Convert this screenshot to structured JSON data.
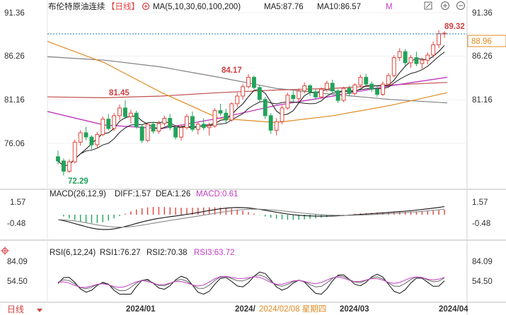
{
  "header": {
    "title": "布伦特原油连续",
    "period_badge": "【日线】",
    "ma_params": "MA(5,10,30,60,100,200)",
    "ma5": "MA5:87.76",
    "ma10": "MA10:86.57",
    "ma_more": "M"
  },
  "price_axis": {
    "ticks": [
      "91.36",
      "86.26",
      "81.16",
      "76.06"
    ],
    "current_price": "88.96"
  },
  "annotations": {
    "high_1": "89.32",
    "high_2": "84.17",
    "level_mid": "81.45",
    "low": "72.29"
  },
  "macd_legend": {
    "params": "MACD(26,12,9)",
    "diff": "DIFF:1.57",
    "dea": "DEA:1.26",
    "macd": "MACD:0.61"
  },
  "macd_axis": {
    "ticks": [
      "1.57",
      "-0.48"
    ]
  },
  "rsi_legend": {
    "params": "RSI(6,12,24)",
    "rsi1": "RSI1:76.27",
    "rsi2": "RSI2:70.38",
    "rsi3": "RSI3:63.72"
  },
  "rsi_axis": {
    "ticks": [
      "84.09",
      "54.50"
    ]
  },
  "footer": {
    "period_button": "日线",
    "dates": [
      "2024/01",
      "2024/02/08 星期四",
      "2024/03",
      "2024/04"
    ],
    "date_first_part": "2024/",
    "date_highlight": "2024/02/08 星期四"
  },
  "colors": {
    "up": "#e0443a",
    "down": "#22a35a",
    "ma5": "#111111",
    "ma10": "#222222",
    "ma30": "#c03cc0",
    "ma60": "#e08a20",
    "ma100": "#c0504d",
    "ma200": "#808080",
    "diff": "#111111",
    "dea": "#888888"
  },
  "chart_data": {
    "type": "candlestick",
    "title": "布伦特原油连续",
    "period": "daily",
    "yticks": [
      91.36,
      86.26,
      81.16,
      76.06
    ],
    "ylim": [
      71.5,
      92.5
    ],
    "current_price": 88.96,
    "high_marker": 89.32,
    "low_marker": 72.29,
    "x_labels": [
      "2024/01",
      "2024/02/08 星期四",
      "2024/03",
      "2024/04"
    ],
    "ohlc": [
      [
        74.5,
        75.2,
        73.6,
        74.0
      ],
      [
        74.0,
        74.3,
        72.29,
        72.8
      ],
      [
        72.8,
        74.2,
        72.6,
        73.9
      ],
      [
        73.9,
        76.5,
        73.7,
        76.2
      ],
      [
        76.2,
        77.6,
        75.8,
        77.3
      ],
      [
        77.3,
        78.0,
        76.4,
        76.8
      ],
      [
        76.8,
        77.0,
        75.4,
        75.9
      ],
      [
        75.9,
        77.4,
        75.5,
        77.1
      ],
      [
        77.1,
        79.2,
        76.9,
        78.9
      ],
      [
        78.9,
        79.5,
        77.6,
        77.8
      ],
      [
        77.8,
        79.6,
        77.5,
        79.3
      ],
      [
        79.3,
        80.6,
        78.8,
        80.2
      ],
      [
        80.2,
        81.1,
        78.9,
        79.2
      ],
      [
        79.2,
        80.0,
        78.4,
        79.6
      ],
      [
        79.6,
        79.9,
        77.8,
        78.0
      ],
      [
        78.0,
        78.2,
        76.1,
        76.4
      ],
      [
        76.4,
        78.5,
        76.2,
        78.3
      ],
      [
        78.3,
        78.6,
        77.2,
        77.5
      ],
      [
        77.5,
        78.7,
        77.2,
        78.4
      ],
      [
        78.4,
        79.3,
        78.1,
        79.0
      ],
      [
        79.0,
        79.5,
        77.6,
        77.9
      ],
      [
        77.9,
        78.1,
        76.5,
        76.8
      ],
      [
        76.8,
        78.2,
        76.4,
        77.9
      ],
      [
        77.9,
        79.5,
        77.7,
        79.2
      ],
      [
        79.2,
        79.8,
        77.4,
        77.7
      ],
      [
        77.7,
        78.6,
        77.1,
        78.3
      ],
      [
        78.3,
        79.0,
        77.6,
        77.9
      ],
      [
        77.9,
        78.5,
        77.0,
        78.1
      ],
      [
        78.1,
        80.2,
        77.9,
        79.9
      ],
      [
        79.9,
        80.7,
        79.3,
        79.6
      ],
      [
        79.6,
        80.1,
        78.5,
        78.8
      ],
      [
        78.8,
        80.9,
        78.6,
        80.7
      ],
      [
        80.7,
        82.0,
        80.3,
        81.6
      ],
      [
        81.6,
        83.0,
        81.2,
        82.7
      ],
      [
        82.7,
        84.17,
        82.5,
        83.8
      ],
      [
        83.8,
        84.0,
        82.4,
        82.6
      ],
      [
        82.6,
        82.9,
        80.9,
        81.2
      ],
      [
        81.2,
        81.5,
        78.9,
        79.3
      ],
      [
        79.3,
        79.6,
        77.2,
        77.6
      ],
      [
        77.6,
        79.0,
        77.0,
        78.6
      ],
      [
        78.6,
        80.5,
        78.3,
        80.2
      ],
      [
        80.2,
        82.0,
        80.0,
        81.7
      ],
      [
        81.7,
        82.2,
        80.9,
        81.3
      ],
      [
        81.3,
        82.5,
        81.0,
        82.2
      ],
      [
        82.2,
        83.2,
        81.9,
        82.8
      ],
      [
        82.8,
        83.0,
        81.6,
        82.1
      ],
      [
        82.1,
        82.4,
        81.2,
        81.5
      ],
      [
        81.5,
        82.6,
        81.3,
        82.4
      ],
      [
        82.4,
        83.4,
        82.1,
        83.1
      ],
      [
        83.1,
        83.5,
        81.9,
        82.2
      ],
      [
        82.2,
        82.4,
        80.8,
        81.1
      ],
      [
        81.1,
        82.7,
        80.9,
        82.5
      ],
      [
        82.5,
        82.8,
        81.6,
        81.9
      ],
      [
        81.9,
        83.1,
        81.7,
        82.9
      ],
      [
        82.9,
        84.1,
        82.6,
        83.8
      ],
      [
        83.8,
        84.2,
        82.8,
        83.0
      ],
      [
        83.0,
        83.3,
        82.1,
        82.4
      ],
      [
        82.4,
        82.7,
        81.5,
        81.8
      ],
      [
        81.8,
        83.3,
        81.6,
        83.0
      ],
      [
        83.0,
        84.3,
        82.8,
        84.0
      ],
      [
        84.0,
        86.4,
        83.8,
        86.1
      ],
      [
        86.1,
        87.2,
        85.7,
        86.8
      ],
      [
        86.8,
        87.1,
        85.2,
        85.5
      ],
      [
        85.5,
        86.4,
        84.9,
        86.1
      ],
      [
        86.1,
        86.8,
        85.1,
        85.4
      ],
      [
        85.4,
        86.1,
        84.8,
        85.8
      ],
      [
        85.8,
        86.7,
        85.3,
        86.4
      ],
      [
        86.4,
        88.0,
        86.1,
        87.6
      ],
      [
        87.6,
        89.32,
        87.2,
        88.9
      ],
      [
        88.9,
        89.2,
        88.4,
        88.96
      ]
    ],
    "ma": {
      "ma5_start": 74.8,
      "ma5_end": 87.76,
      "ma10_start": 75.6,
      "ma10_end": 86.57,
      "ma30": [
        79.8,
        78.2,
        77.8,
        79.0,
        80.5,
        81.6,
        82.8,
        83.8
      ],
      "ma60": [
        88.0,
        85.5,
        82.0,
        79.0,
        78.5,
        79.3,
        80.5,
        82.0
      ],
      "ma100": [
        81.5,
        81.4,
        81.6,
        82.0,
        82.3,
        82.5,
        82.9,
        83.2
      ],
      "ma200": [
        86.2,
        85.8,
        85.0,
        83.8,
        82.5,
        81.8,
        81.2,
        80.8
      ]
    },
    "macd": {
      "diff": 1.57,
      "dea": 1.26,
      "macd": 0.61,
      "yticks": [
        1.57,
        -0.48
      ]
    },
    "rsi": {
      "rsi1": 76.27,
      "rsi2": 70.38,
      "rsi3": 63.72,
      "yticks": [
        84.09,
        54.5
      ]
    }
  }
}
